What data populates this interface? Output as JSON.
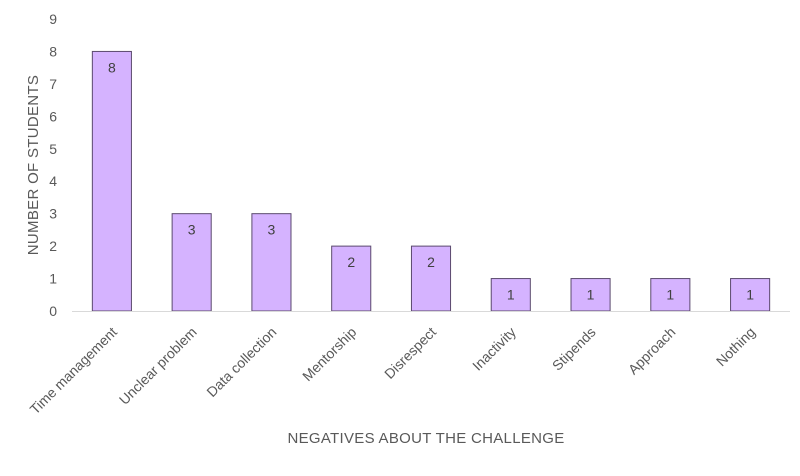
{
  "chart_data": {
    "type": "bar",
    "title": "",
    "xlabel": "NEGATIVES ABOUT THE CHALLENGE",
    "ylabel": "NUMBER OF STUDENTS",
    "categories": [
      "Time management",
      "Unclear problem",
      "Data collection",
      "Mentorship",
      "Disrespect",
      "Inactivity",
      "Stipends",
      "Approach",
      "Nothing"
    ],
    "values": [
      8,
      3,
      3,
      2,
      2,
      1,
      1,
      1,
      1
    ],
    "ylim": [
      0,
      9
    ],
    "yticks": [
      0,
      1,
      2,
      3,
      4,
      5,
      6,
      7,
      8,
      9
    ],
    "grid": false,
    "legend": "none",
    "data_labels": true,
    "colors": {
      "bar_fill": "#d5b3ff",
      "bar_stroke": "#5b4a6e",
      "axis_line": "#d9d9d9",
      "text": "#595959"
    }
  }
}
